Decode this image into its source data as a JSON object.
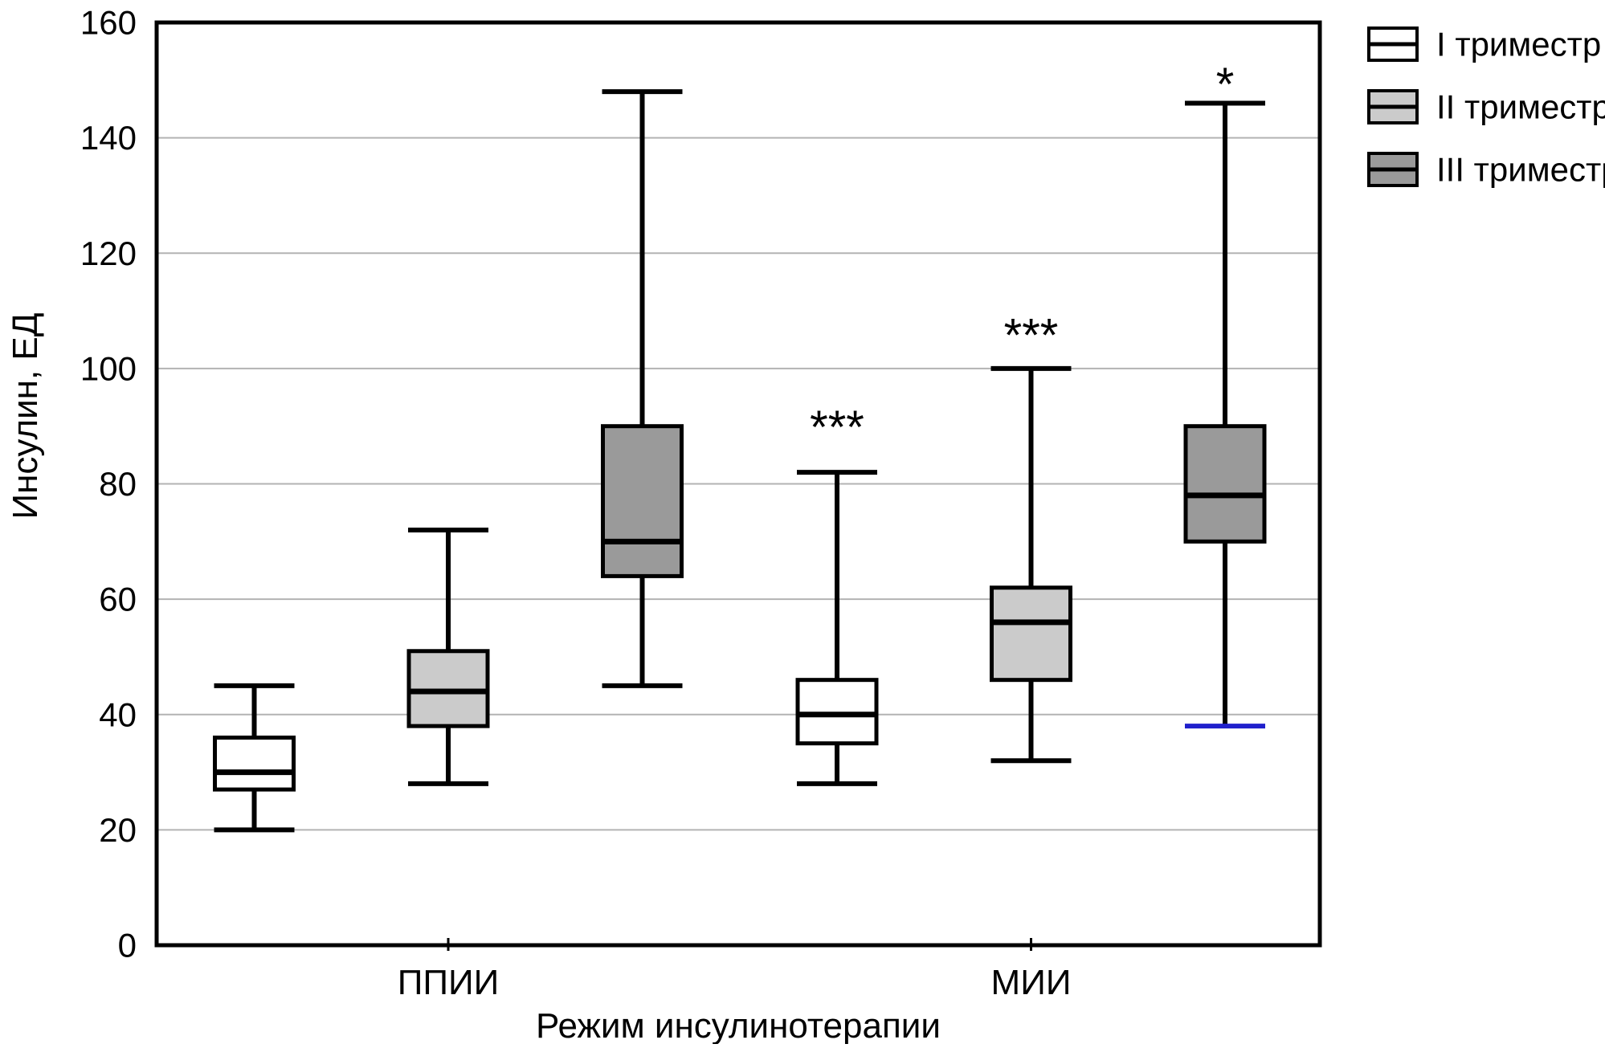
{
  "chart_data": {
    "type": "boxplot",
    "title": "",
    "ylabel": "Инсулин, ЕД",
    "xlabel": "Режим инсулинотерапии",
    "ylim": [
      0,
      160
    ],
    "yticks": [
      0,
      20,
      40,
      60,
      80,
      100,
      120,
      140,
      160
    ],
    "grid": true,
    "groups": [
      "ППИИ",
      "МИИ"
    ],
    "legend_position": "top-right",
    "legend": [
      "I триместр",
      "II триместр",
      "III триместр"
    ],
    "colors": {
      "axis": "#000000",
      "grid": "#b3b3b3",
      "series_fills": [
        "#ffffff",
        "#cbcbcb",
        "#9a9a9a"
      ],
      "special_cap_blue": "#2020cc"
    },
    "series": [
      {
        "name": "I триместр",
        "fill": "#ffffff",
        "boxes": [
          {
            "group": "ППИИ",
            "whisker_low": 20,
            "q1": 27,
            "median": 30,
            "q3": 36,
            "whisker_high": 45
          },
          {
            "group": "МИИ",
            "whisker_low": 28,
            "q1": 35,
            "median": 40,
            "q3": 46,
            "whisker_high": 82,
            "annotation": "***",
            "annotation_y": 87
          }
        ]
      },
      {
        "name": "II триместр",
        "fill": "#cbcbcb",
        "boxes": [
          {
            "group": "ППИИ",
            "whisker_low": 28,
            "q1": 38,
            "median": 44,
            "q3": 51,
            "whisker_high": 72
          },
          {
            "group": "МИИ",
            "whisker_low": 32,
            "q1": 46,
            "median": 56,
            "q3": 62,
            "whisker_high": 100,
            "annotation": "***",
            "annotation_y": 103
          }
        ]
      },
      {
        "name": "III триместр",
        "fill": "#9a9a9a",
        "boxes": [
          {
            "group": "ППИИ",
            "whisker_low": 45,
            "q1": 64,
            "median": 70,
            "q3": 90,
            "whisker_high": 148
          },
          {
            "group": "МИИ",
            "whisker_low": 38,
            "q1": 70,
            "median": 78,
            "q3": 90,
            "whisker_high": 146,
            "annotation": "*",
            "annotation_y": 146.5,
            "low_cap_color": "#2020cc"
          }
        ]
      }
    ]
  }
}
